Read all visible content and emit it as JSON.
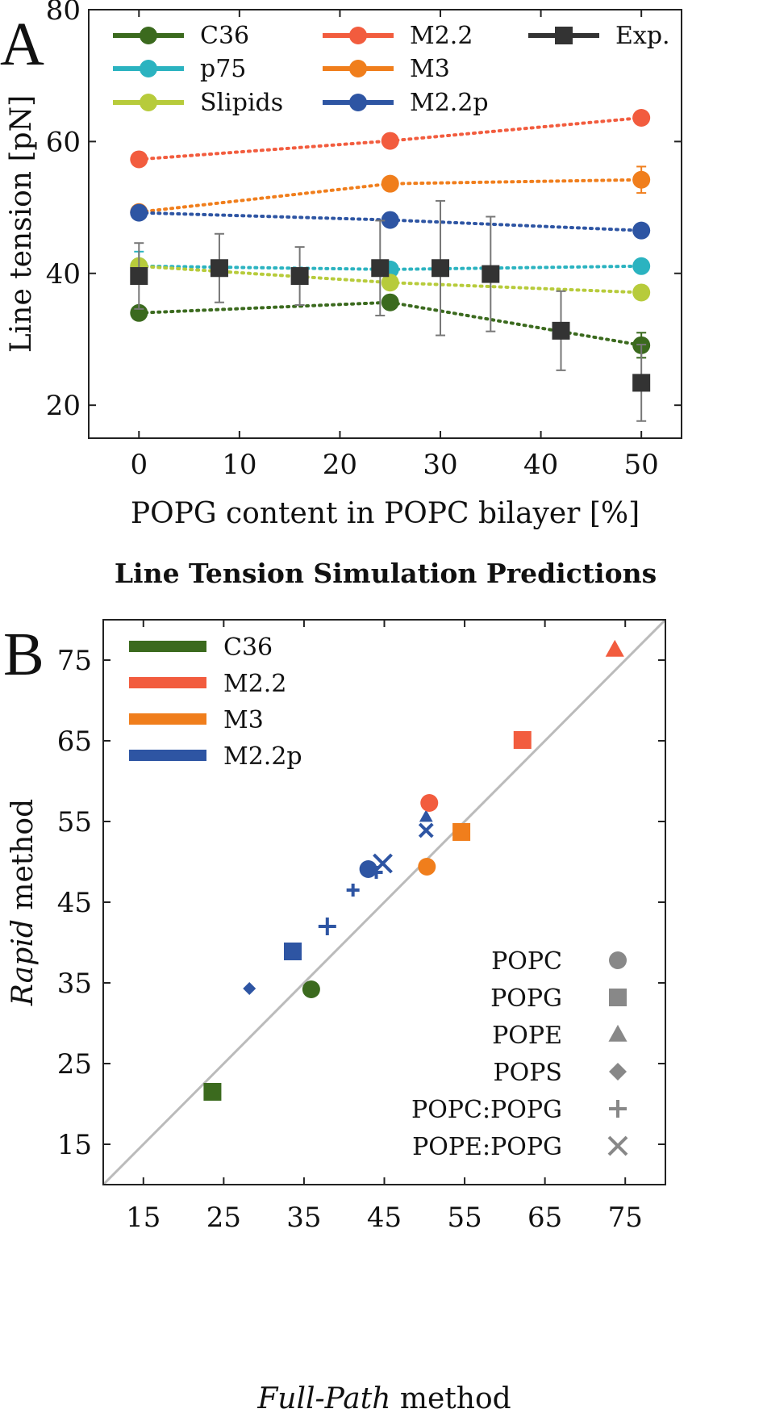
{
  "figure": {
    "panel_a_letter": "A",
    "panel_b_letter": "B"
  },
  "chart_data": [
    {
      "type": "line",
      "panel": "A",
      "title": "",
      "xlabel": "POPG content in POPC bilayer [%]",
      "ylabel": "Line tension [pN]",
      "xlim": [
        -5,
        54
      ],
      "ylim": [
        15,
        80
      ],
      "xticks": [
        0,
        10,
        20,
        30,
        40,
        50
      ],
      "yticks": [
        20,
        40,
        60,
        80
      ],
      "grid": false,
      "legend_position": "top",
      "series": [
        {
          "name": "C36",
          "color": "#3b6a1e",
          "marker": "circle",
          "style": "dotted",
          "x": [
            0,
            25,
            50
          ],
          "y": [
            34,
            35.6,
            29.1
          ],
          "yerr": [
            0,
            0,
            1.9
          ]
        },
        {
          "name": "p75",
          "color": "#2bb3c0",
          "marker": "circle",
          "style": "dotted",
          "x": [
            0,
            25,
            50
          ],
          "y": [
            41.1,
            40.6,
            41.1
          ],
          "yerr": [
            2.2,
            0,
            0
          ]
        },
        {
          "name": "Slipids",
          "color": "#b7cb3b",
          "marker": "circle",
          "style": "dotted",
          "x": [
            0,
            25,
            50
          ],
          "y": [
            41.1,
            38.6,
            37.1
          ],
          "yerr": [
            0,
            0,
            0
          ]
        },
        {
          "name": "M2.2",
          "color": "#f25c3e",
          "marker": "circle",
          "style": "dotted",
          "x": [
            0,
            25,
            50
          ],
          "y": [
            57.3,
            60.1,
            63.6
          ],
          "yerr": [
            0,
            0,
            0
          ]
        },
        {
          "name": "M3",
          "color": "#f07e1c",
          "marker": "circle",
          "style": "dotted",
          "x": [
            0,
            25,
            50
          ],
          "y": [
            49.3,
            53.6,
            54.2
          ],
          "yerr": [
            0,
            0,
            2
          ]
        },
        {
          "name": "M2.2p",
          "color": "#2e55a3",
          "marker": "circle",
          "style": "dotted",
          "x": [
            0,
            25,
            50
          ],
          "y": [
            49.2,
            48.1,
            46.5
          ],
          "yerr": [
            0,
            0,
            0
          ]
        },
        {
          "name": "Exp.",
          "color": "#333333",
          "marker": "square",
          "style": "none",
          "x": [
            0,
            8,
            16,
            24,
            30,
            35,
            42,
            50
          ],
          "y": [
            39.6,
            40.8,
            39.6,
            40.8,
            40.8,
            39.9,
            31.3,
            23.4
          ],
          "yerr": [
            5,
            5.2,
            4.4,
            7.2,
            10.2,
            8.7,
            6,
            5.8
          ]
        }
      ]
    },
    {
      "type": "scatter",
      "panel": "B",
      "title": "Line Tension Simulation Predictions",
      "xlabel_italic": "Full-Path",
      "xlabel_rest": " method",
      "ylabel_italic": "Rapid",
      "ylabel_rest": " method",
      "xlim": [
        10,
        80
      ],
      "ylim": [
        10,
        80
      ],
      "xticks": [
        15,
        25,
        35,
        45,
        55,
        65,
        75
      ],
      "yticks": [
        15,
        25,
        35,
        45,
        55,
        65,
        75
      ],
      "grid": false,
      "diagonal": true,
      "color_legend": [
        {
          "name": "C36",
          "color": "#3b6a1e"
        },
        {
          "name": "M2.2",
          "color": "#f25c3e"
        },
        {
          "name": "M3",
          "color": "#f07e1c"
        },
        {
          "name": "M2.2p",
          "color": "#2e55a3"
        }
      ],
      "marker_legend": [
        {
          "name": "POPC",
          "marker": "circle"
        },
        {
          "name": "POPG",
          "marker": "square"
        },
        {
          "name": "POPE",
          "marker": "triangle"
        },
        {
          "name": "POPS",
          "marker": "diamond"
        },
        {
          "name": "POPC:POPG",
          "marker": "plus"
        },
        {
          "name": "POPE:POPG",
          "marker": "x"
        }
      ],
      "legend_marker_color": "#888888",
      "points": [
        {
          "x": 23.6,
          "y": 21.5,
          "color": "#3b6a1e",
          "marker": "square",
          "size": "large"
        },
        {
          "x": 35.9,
          "y": 34.2,
          "color": "#3b6a1e",
          "marker": "circle",
          "size": "large"
        },
        {
          "x": 28.2,
          "y": 34.3,
          "color": "#2e55a3",
          "marker": "diamond",
          "size": "small"
        },
        {
          "x": 33.6,
          "y": 38.9,
          "color": "#2e55a3",
          "marker": "square",
          "size": "large"
        },
        {
          "x": 37.9,
          "y": 42.0,
          "color": "#2e55a3",
          "marker": "plus",
          "size": "large"
        },
        {
          "x": 41.1,
          "y": 46.5,
          "color": "#2e55a3",
          "marker": "plus",
          "size": "small"
        },
        {
          "x": 43.0,
          "y": 49.1,
          "color": "#2e55a3",
          "marker": "circle",
          "size": "large"
        },
        {
          "x": 44.0,
          "y": 48.7,
          "color": "#2e55a3",
          "marker": "plus",
          "size": "small"
        },
        {
          "x": 44.8,
          "y": 49.8,
          "color": "#2e55a3",
          "marker": "x",
          "size": "large"
        },
        {
          "x": 50.2,
          "y": 55.6,
          "color": "#2e55a3",
          "marker": "triangle",
          "size": "small"
        },
        {
          "x": 50.2,
          "y": 53.9,
          "color": "#2e55a3",
          "marker": "x",
          "size": "small"
        },
        {
          "x": 50.6,
          "y": 57.3,
          "color": "#f25c3e",
          "marker": "circle",
          "size": "large"
        },
        {
          "x": 62.2,
          "y": 65.1,
          "color": "#f25c3e",
          "marker": "square",
          "size": "large"
        },
        {
          "x": 73.7,
          "y": 76.3,
          "color": "#f25c3e",
          "marker": "triangle",
          "size": "large"
        },
        {
          "x": 50.3,
          "y": 49.4,
          "color": "#f07e1c",
          "marker": "circle",
          "size": "large"
        },
        {
          "x": 54.6,
          "y": 53.7,
          "color": "#f07e1c",
          "marker": "square",
          "size": "large"
        }
      ]
    }
  ]
}
